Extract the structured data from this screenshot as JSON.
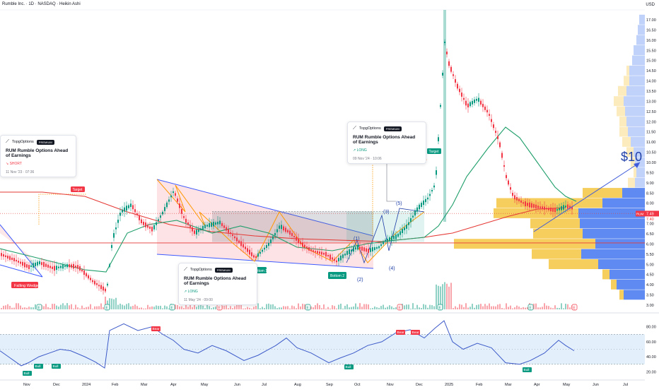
{
  "header": {
    "symbol_line": "Rumble Inc. · 1D · NASDAQ · Heikin Ashi"
  },
  "price_axis": {
    "currency": "USD",
    "ticks": [
      "17.00",
      "16.50",
      "16.00",
      "15.50",
      "15.00",
      "14.50",
      "14.00",
      "13.50",
      "13.00",
      "12.50",
      "12.00",
      "11.50",
      "11.00",
      "10.50",
      "10.00",
      "9.50",
      "9.00",
      "8.50",
      "8.00",
      "7.50",
      "7.00",
      "6.50",
      "6.00",
      "5.50",
      "5.00",
      "4.50",
      "4.00",
      "3.50",
      "3.00"
    ],
    "last_price_label": "RUM",
    "last_price": "7.49",
    "second_price": "7.40"
  },
  "rsi_axis": {
    "ticks": [
      "80.00",
      "60.00",
      "40.00",
      "20.00"
    ]
  },
  "time_axis": {
    "labels": [
      "Nov",
      "Dec",
      "2024",
      "Feb",
      "Mar",
      "Apr",
      "May",
      "Jun",
      "Jul",
      "Aug",
      "Sep",
      "Oct",
      "Nov",
      "Dec",
      "2025",
      "Feb",
      "Mar",
      "Apr",
      "May",
      "Jun",
      "Jul"
    ]
  },
  "annotations": {
    "falling_wedge": "Falling Wedge",
    "target_1": "Target",
    "target_2": "Target",
    "bottom_1": "Bottom 1",
    "bottom_2": "Bottom 2",
    "wave_1": "(1)",
    "wave_2": "(2)",
    "wave_3": "(3)",
    "wave_4": "(4)",
    "wave_5": "(5)",
    "price_target": "$10",
    "earnings_marker": "E"
  },
  "ideas": [
    {
      "brand": "TopgOptions",
      "badge": "PREMIUM",
      "title": "RUM Rumble Options Ahead of Earnings",
      "direction": "↘ SHORT",
      "date": "11 Nov '23 · 07:36"
    },
    {
      "brand": "TopgOptions",
      "badge": "PREMIUM",
      "title": "RUM Rumble Options Ahead of Earnings",
      "direction": "↗ LONG",
      "date": "11 May '24 · 09:00"
    },
    {
      "brand": "TopgOptions",
      "badge": "PREMIUM",
      "title": "RUM Rumble Options Ahead of Earnings",
      "direction": "↗ LONG",
      "date": "09 Nov '24 · 10:06"
    }
  ],
  "rsi_signals": {
    "bull": "Bull",
    "bear": "Bear"
  },
  "colors": {
    "bullish": "#089981",
    "bearish": "#f23645",
    "ma_red": "#e53935",
    "ma_green": "#1e9e6a",
    "wedge_blue": "#3d5afe",
    "orange": "#ff9800",
    "volume_profile_blue": "#4c7df0",
    "volume_profile_yellow": "#f5c542",
    "rsi_line": "#3d5ac9",
    "rsi_band": "#e3f0fb"
  }
}
